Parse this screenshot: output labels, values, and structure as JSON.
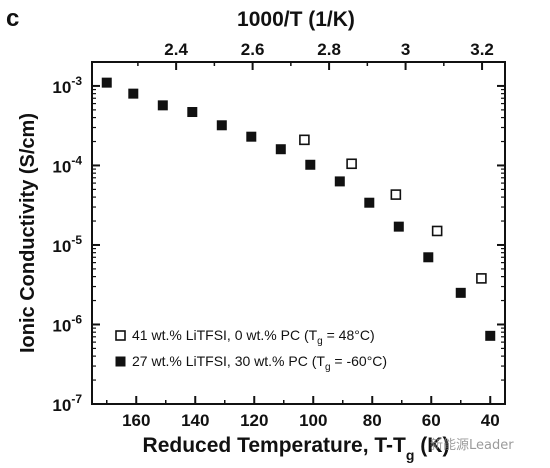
{
  "panel_label": "c",
  "watermark": "新能源Leader",
  "chart_data": {
    "type": "scatter",
    "x_axis": {
      "label": "Reduced Temperature, T-T",
      "label_subscript": "g",
      "label_unit": " (K)",
      "reversed": true,
      "range": [
        175,
        35
      ],
      "ticks": [
        160,
        140,
        120,
        100,
        80,
        60,
        40
      ]
    },
    "top_axis": {
      "label": "1000/T (1/K)",
      "range": [
        2.18,
        3.26
      ],
      "ticks": [
        2.4,
        2.6,
        2.8,
        3,
        3.2
      ]
    },
    "y_axis": {
      "label": "Ionic Conductivity (S/cm)",
      "scale": "log",
      "range": [
        1e-07,
        0.002
      ],
      "ticks": [
        {
          "base": "10",
          "exp": "-7"
        },
        {
          "base": "10",
          "exp": "-6"
        },
        {
          "base": "10",
          "exp": "-5"
        },
        {
          "base": "10",
          "exp": "-4"
        },
        {
          "base": "10",
          "exp": "-3"
        }
      ],
      "tick_values": [
        1e-07,
        1e-06,
        1e-05,
        0.0001,
        0.001
      ]
    },
    "legend_position": "bottom-left",
    "series": [
      {
        "name_pre": "41 wt.% LiTFSI, 0 wt.% PC (T",
        "name_sub": "g",
        "name_post": " = 48°C)",
        "marker": "open-square",
        "x": [
          103,
          87,
          72,
          58,
          43
        ],
        "y": [
          0.00021,
          0.000105,
          4.3e-05,
          1.5e-05,
          3.8e-06
        ]
      },
      {
        "name_pre": "27 wt.% LiTFSI, 30 wt.% PC (T",
        "name_sub": "g",
        "name_post": " = -60°C)",
        "marker": "filled-square",
        "x": [
          170,
          161,
          151,
          141,
          131,
          121,
          111,
          101,
          91,
          81,
          71,
          61,
          50,
          40
        ],
        "y": [
          0.0011,
          0.0008,
          0.00057,
          0.00047,
          0.00032,
          0.00023,
          0.00016,
          0.000102,
          6.3e-05,
          3.4e-05,
          1.7e-05,
          7e-06,
          2.5e-06,
          7.2e-07
        ]
      }
    ]
  }
}
